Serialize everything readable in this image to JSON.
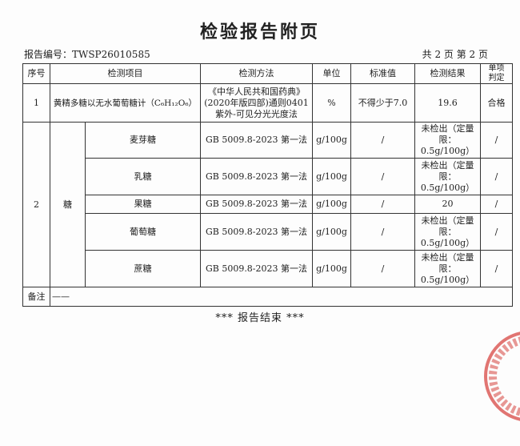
{
  "title": "检验报告附页",
  "report_no": "报告编号：TWSP26010585",
  "page_info": "共 2 页 第 2 页",
  "headers": [
    "序号",
    "检测项目",
    "检测方法",
    "单位",
    "标准值",
    "检测结果",
    "单项判定"
  ],
  "row1": {
    "no": "1",
    "item": "黄精多糖以无水葡萄糖计（C₆H₁₂O₆）",
    "method": "《中华人民共和国药典》(2020年版四部)通则0401紫外-可见分光光度法",
    "unit": "%",
    "standard": "不得少于7.0",
    "result": "19.6",
    "judgement": "合格"
  },
  "row2": {
    "no": "2",
    "group": "糖",
    "items": [
      {
        "item": "麦芽糖",
        "method": "GB 5009.8-2023 第一法",
        "unit": "g/100g",
        "standard": "/",
        "result": "未检出（定量限：0.5g/100g）",
        "judgement": "/"
      },
      {
        "item": "乳糖",
        "method": "GB 5009.8-2023 第一法",
        "unit": "g/100g",
        "standard": "/",
        "result": "未检出（定量限：0.5g/100g）",
        "judgement": "/"
      },
      {
        "item": "果糖",
        "method": "GB 5009.8-2023 第一法",
        "unit": "g/100g",
        "standard": "/",
        "result": "20",
        "judgement": "/"
      },
      {
        "item": "葡萄糖",
        "method": "GB 5009.8-2023 第一法",
        "unit": "g/100g",
        "standard": "/",
        "result": "未检出（定量限：0.5g/100g）",
        "judgement": "/"
      },
      {
        "item": "蔗糖",
        "method": "GB 5009.8-2023 第一法",
        "unit": "g/100g",
        "standard": "/",
        "result": "未检出（定量限：0.5g/100g）",
        "judgement": "/"
      }
    ]
  },
  "remarks": {
    "label": "备注",
    "value": "——"
  },
  "end_text": "*** 报告结束 ***",
  "stamp_color": "#d9534f"
}
